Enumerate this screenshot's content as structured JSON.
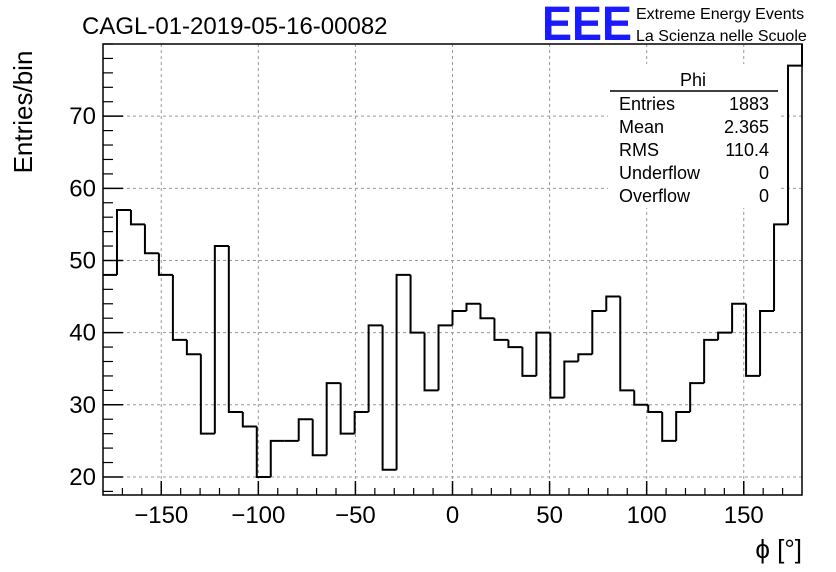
{
  "title": "CAGL-01-2019-05-16-00082",
  "logo": {
    "letters": "EEE",
    "line1": "Extreme Energy Events",
    "line2": "La Scienza nelle Scuole",
    "color": "#1a1aff"
  },
  "stats_box": {
    "title": "Phi",
    "rows": [
      {
        "label": "Entries",
        "value": "1883"
      },
      {
        "label": "Mean",
        "value": "2.365"
      },
      {
        "label": "RMS",
        "value": "110.4"
      },
      {
        "label": "Underflow",
        "value": "0"
      },
      {
        "label": "Overflow",
        "value": "0"
      }
    ]
  },
  "chart_data": {
    "type": "histogram",
    "title": "CAGL-01-2019-05-16-00082",
    "xlabel": "ϕ [°]",
    "ylabel": "Entries/bin",
    "xlim": [
      -180,
      180
    ],
    "ylim": [
      17.5,
      80
    ],
    "bin_width": 7.2,
    "bin_edges_start": -180,
    "values": [
      48,
      57,
      55,
      51,
      48,
      39,
      37,
      26,
      52,
      29,
      27,
      20,
      25,
      25,
      28,
      23,
      33,
      26,
      29,
      41,
      21,
      48,
      40,
      32,
      41,
      43,
      44,
      42,
      39,
      38,
      34,
      40,
      31,
      36,
      37,
      43,
      45,
      32,
      30,
      29,
      25,
      29,
      33,
      39,
      40,
      44,
      34,
      43,
      55,
      77
    ],
    "x_ticks": [
      -150,
      -100,
      -50,
      0,
      50,
      100,
      150
    ],
    "x_tick_labels": [
      "−150",
      "−100",
      "−50",
      "0",
      "50",
      "100",
      "150"
    ],
    "y_ticks": [
      20,
      30,
      40,
      50,
      60,
      70
    ],
    "y_tick_labels": [
      "20",
      "30",
      "40",
      "50",
      "60",
      "70"
    ],
    "grid": true,
    "line_color": "#000000"
  }
}
